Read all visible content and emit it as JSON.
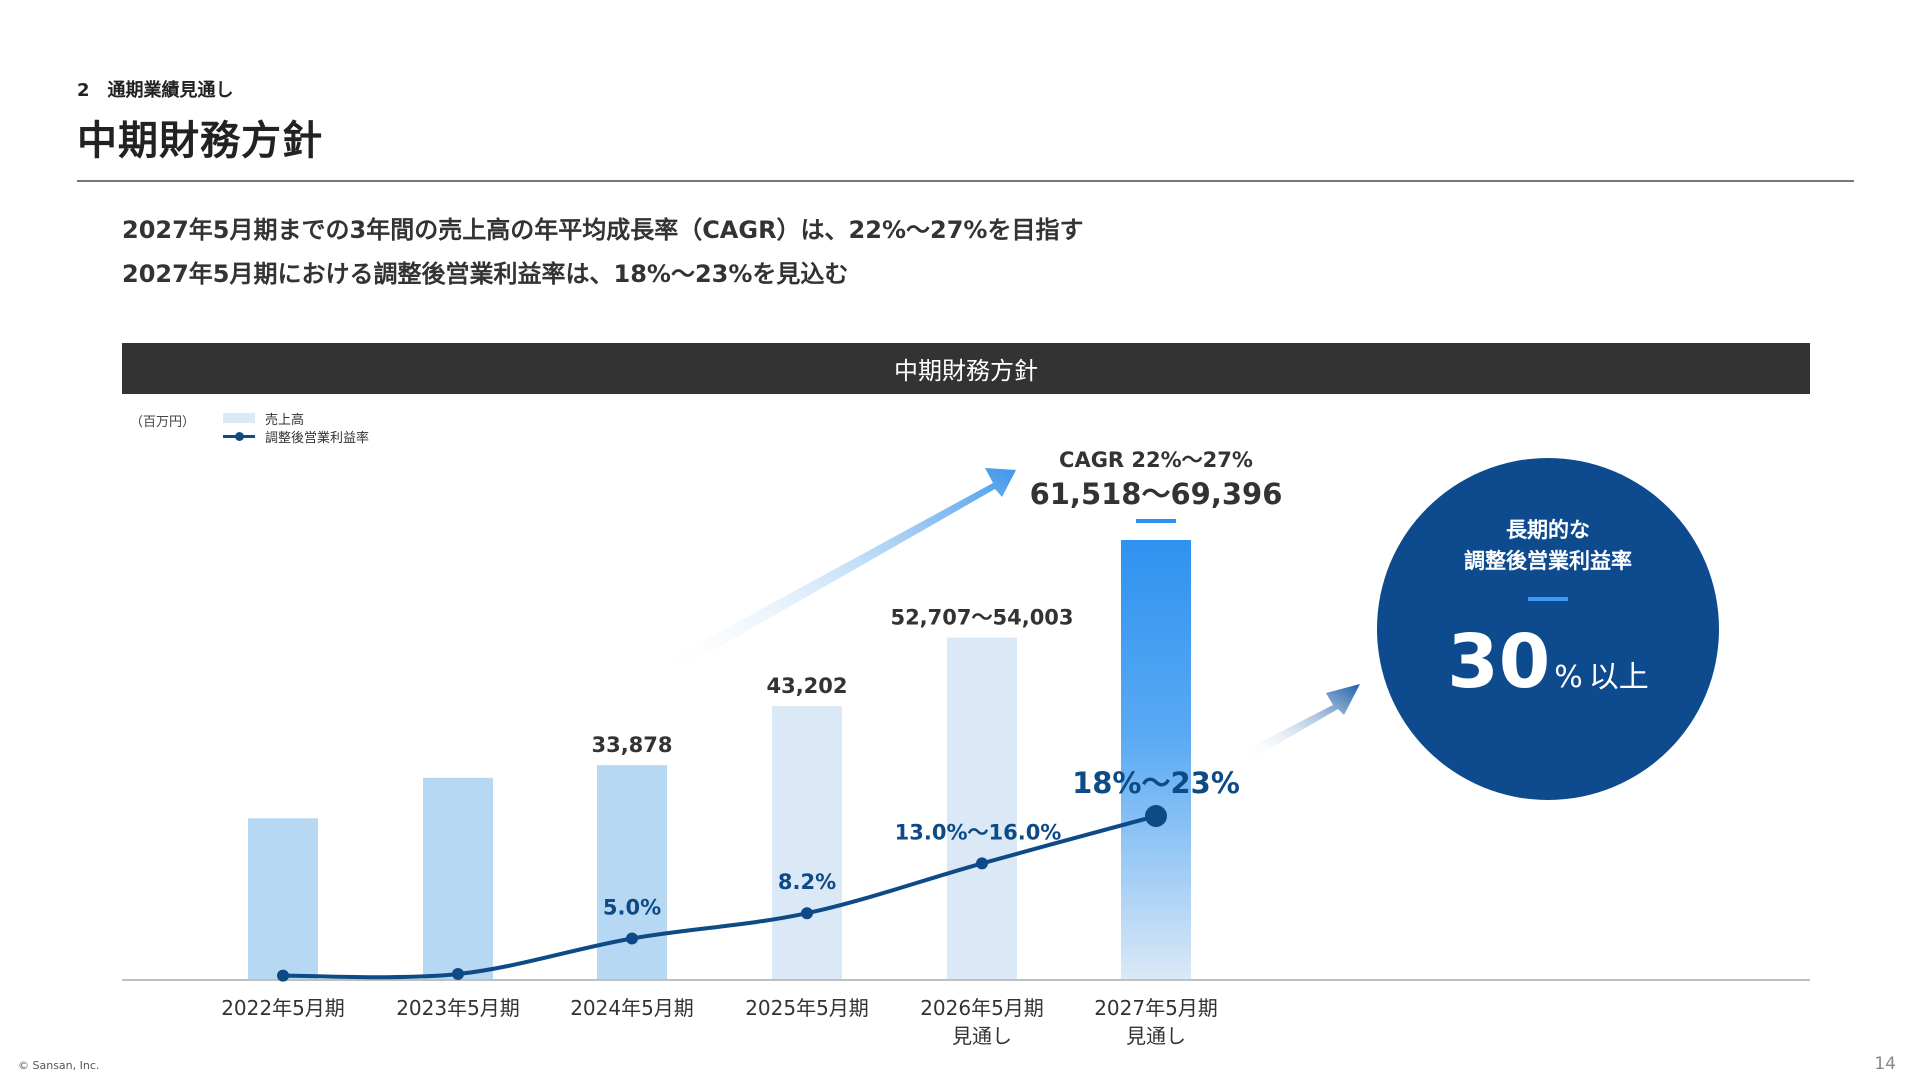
{
  "header": {
    "section": "2　通期業績見通し",
    "title": "中期財務方針"
  },
  "lead": {
    "line1": "2027年5月期までの3年間の売上高の年平均成長率（CAGR）は、22%～27%を目指す",
    "line2": "2027年5月期における調整後営業利益率は、18%～23%を見込む"
  },
  "banner": {
    "title": "中期財務方針"
  },
  "chart_data": {
    "type": "bar",
    "unit": "（百万円）",
    "categories": [
      [
        "2022年5月期"
      ],
      [
        "2023年5月期"
      ],
      [
        "2024年5月期"
      ],
      [
        "2025年5月期"
      ],
      [
        "2026年5月期",
        "見通し"
      ],
      [
        "2027年5月期",
        "見通し"
      ]
    ],
    "series": [
      {
        "name": "売上高",
        "type": "bar",
        "values": [
          25510,
          31885,
          33878,
          43202,
          54003,
          69396
        ],
        "labels": [
          "",
          "",
          "33,878",
          "43,202",
          "52,707～54,003",
          "61,518～69,396"
        ]
      },
      {
        "name": "調整後営業利益率",
        "type": "line",
        "values": [
          0.3,
          0.5,
          5.0,
          8.2,
          14.5,
          20.5
        ],
        "labels": [
          "",
          "",
          "5.0%",
          "8.2%",
          "13.0%～16.0%",
          "18%～23%"
        ]
      }
    ],
    "annotations": {
      "cagr": "CAGR 22%～27%"
    },
    "colors": {
      "bar_light": "#b7d8f2",
      "bar_lighter": "#dbe9f7",
      "bar_highlight": "#2f92f0",
      "line": "#0d4a86",
      "arrow": "#3d96e8"
    }
  },
  "circle": {
    "title1": "長期的な",
    "title2": "調整後営業利益率",
    "value": "30",
    "unit": "%",
    "suffix": "以上"
  },
  "footer": {
    "copyright": "© Sansan, Inc.",
    "page": "14"
  }
}
